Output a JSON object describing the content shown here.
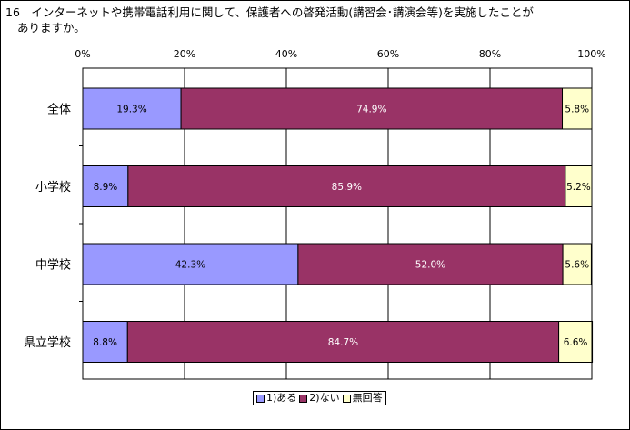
{
  "title_line1": "16　インターネットや携帯電話利用に関して、保護者への啓発活動(講習会･講演会等)を実施したことが",
  "title_line2": "ありますか。",
  "colors": {
    "series1": "#9999ff",
    "series2": "#993366",
    "series3": "#ffffcc",
    "grid": "#000000",
    "frame": "#000000"
  },
  "chart_data": {
    "type": "bar",
    "orientation": "horizontal",
    "stacked": "percent",
    "categories": [
      "全体",
      "小学校",
      "中学校",
      "県立学校"
    ],
    "series": [
      {
        "name": "1)ある",
        "values": [
          19.3,
          8.9,
          42.3,
          8.8
        ],
        "labels": [
          "19.3%",
          "8.9%",
          "42.3%",
          "8.8%"
        ]
      },
      {
        "name": "2)ない",
        "values": [
          74.9,
          85.9,
          52.0,
          84.7
        ],
        "labels": [
          "74.9%",
          "85.9%",
          "52.0%",
          "84.7%"
        ]
      },
      {
        "name": "無回答",
        "values": [
          5.8,
          5.2,
          5.6,
          6.6
        ],
        "labels": [
          "5.8%",
          "5.2%",
          "5.6%",
          "6.6%"
        ]
      }
    ],
    "xlim": [
      0,
      100
    ],
    "x_ticks": [
      "0%",
      "20%",
      "40%",
      "60%",
      "80%",
      "100%"
    ],
    "grid": true,
    "legend_position": "bottom"
  }
}
